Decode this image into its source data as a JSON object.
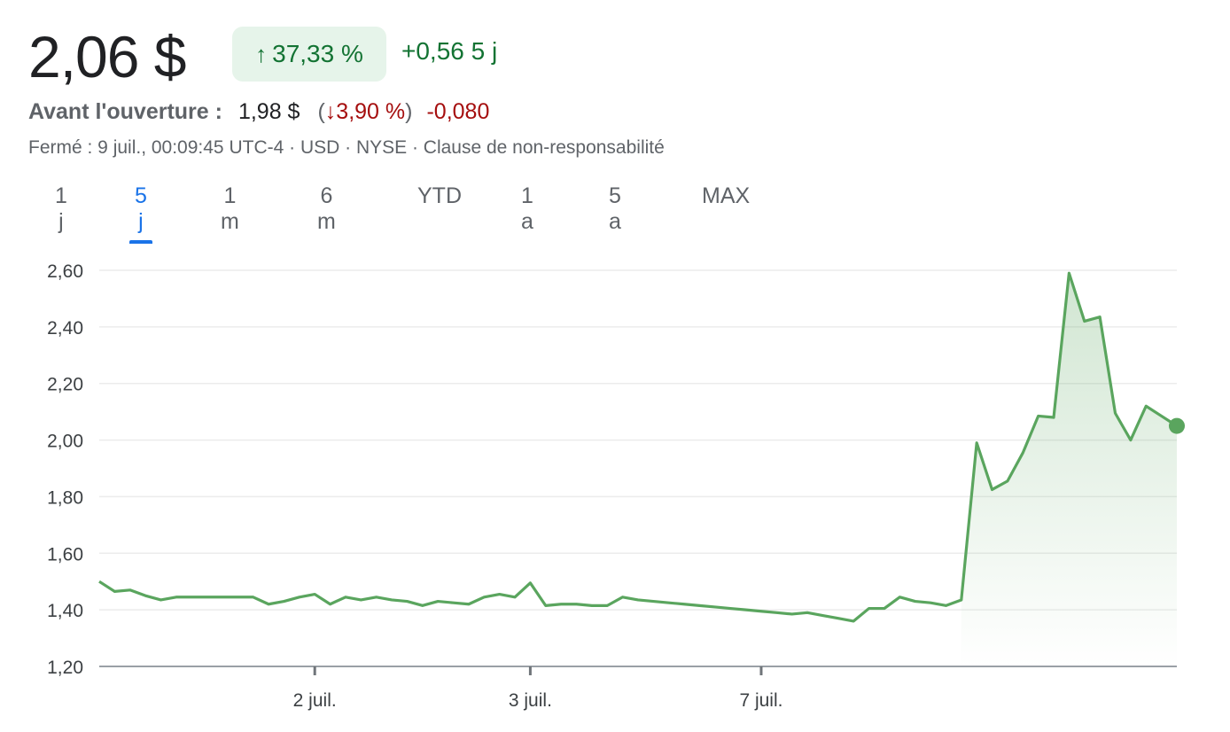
{
  "quote": {
    "price": "2,06 $",
    "change_arrow": "↑",
    "change_pct": "37,33 %",
    "change_abs_period": "+0,56 5 j"
  },
  "premarket": {
    "label": "Avant l'ouverture :",
    "price": "1,98 $",
    "paren_open": "(",
    "arrow": "↓",
    "pct": "3,90 %",
    "paren_close": ")",
    "delta": "-0,080"
  },
  "meta": "Fermé : 9 juil., 00:09:45 UTC-4 · USD · NYSE · Clause de non-responsabilité",
  "tabs": [
    {
      "label": "1 j",
      "active": false
    },
    {
      "label": "5 j",
      "active": true
    },
    {
      "label": "1 m",
      "active": false
    },
    {
      "label": "6 m",
      "active": false
    },
    {
      "label": "YTD",
      "active": false
    },
    {
      "label": "1 a",
      "active": false
    },
    {
      "label": "5 a",
      "active": false
    },
    {
      "label": "MAX",
      "active": false
    }
  ],
  "colors": {
    "line": "#5aa55e",
    "fill": "#e6f4ea",
    "grid": "#ececec",
    "axis": "#70757a",
    "positive": "#137333",
    "negative": "#a50e0e",
    "active_tab": "#1a73e8"
  },
  "chart_data": {
    "type": "line",
    "ylim": [
      1.2,
      2.6
    ],
    "yticks": [
      1.2,
      1.4,
      1.6,
      1.8,
      2.0,
      2.2,
      2.4,
      2.6
    ],
    "ytick_labels": [
      "1,20",
      "1,40",
      "1,60",
      "1,80",
      "2,00",
      "2,20",
      "2,40",
      "2,60"
    ],
    "xticks": [
      {
        "label": "2 juil.",
        "index": 14
      },
      {
        "label": "3 juil.",
        "index": 28
      },
      {
        "label": "7 juil.",
        "index": 43
      }
    ],
    "grid": true,
    "legend": "none",
    "values": [
      1.5,
      1.465,
      1.47,
      1.45,
      1.435,
      1.445,
      1.445,
      1.445,
      1.445,
      1.445,
      1.445,
      1.42,
      1.43,
      1.445,
      1.455,
      1.42,
      1.445,
      1.435,
      1.445,
      1.435,
      1.43,
      1.415,
      1.43,
      1.425,
      1.42,
      1.445,
      1.455,
      1.445,
      1.495,
      1.415,
      1.42,
      1.42,
      1.415,
      1.415,
      1.445,
      1.435,
      1.43,
      1.425,
      1.42,
      1.415,
      1.41,
      1.405,
      1.4,
      1.395,
      1.39,
      1.385,
      1.39,
      1.38,
      1.37,
      1.36,
      1.405,
      1.405,
      1.445,
      1.43,
      1.425,
      1.415,
      1.435,
      1.99,
      1.825,
      1.855,
      1.955,
      2.085,
      2.08,
      2.59,
      2.42,
      2.435,
      2.095,
      2.0,
      2.12,
      2.085,
      2.05
    ]
  }
}
